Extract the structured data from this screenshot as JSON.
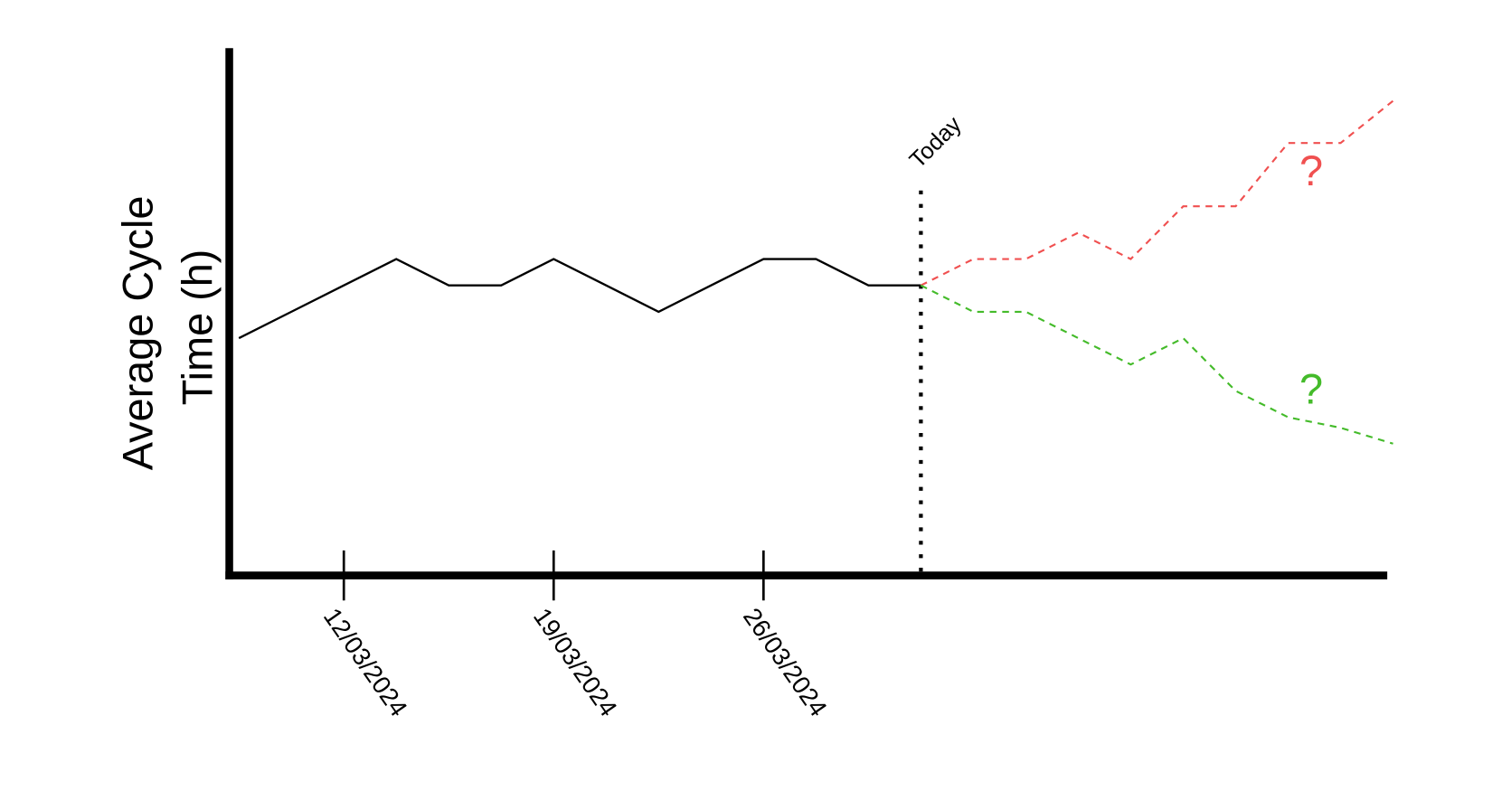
{
  "chart_data": {
    "type": "line",
    "y_label": [
      "Average Cycle",
      "Time (h)"
    ],
    "categories": [
      null,
      null,
      "12/03/2024",
      null,
      null,
      null,
      "19/03/2024",
      null,
      null,
      null,
      "26/03/2024",
      null,
      null,
      null,
      null,
      null,
      null,
      null,
      null,
      null,
      null,
      null,
      null
    ],
    "ylim": [
      0,
      100
    ],
    "series": [
      {
        "color": "#000000",
        "dash": "solid",
        "values": [
          45,
          50,
          55,
          60,
          55,
          55,
          60,
          55,
          50,
          55,
          60,
          60,
          55,
          55,
          null,
          null,
          null,
          null,
          null,
          null,
          null,
          null,
          null
        ]
      },
      {
        "color": "#f05050",
        "dash": "dashed",
        "annotation": "?",
        "values": [
          null,
          null,
          null,
          null,
          null,
          null,
          null,
          null,
          null,
          null,
          null,
          null,
          null,
          55,
          60,
          60,
          65,
          60,
          70,
          70,
          82,
          82,
          90
        ]
      },
      {
        "color": "#44bb2a",
        "dash": "dashed",
        "annotation": "?",
        "values": [
          null,
          null,
          null,
          null,
          null,
          null,
          null,
          null,
          null,
          null,
          null,
          null,
          null,
          55,
          50,
          50,
          45,
          40,
          45,
          35,
          30,
          28,
          25
        ]
      }
    ],
    "vlines": [
      {
        "x": 13,
        "label": "Today"
      }
    ]
  }
}
